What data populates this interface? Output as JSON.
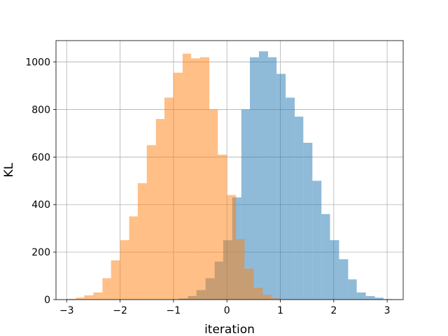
{
  "chart_data": {
    "type": "bar",
    "subtype": "overlapping-histogram",
    "title": "",
    "xlabel": "iteration",
    "ylabel": "KL",
    "xlim": [
      -3.2,
      3.3
    ],
    "ylim": [
      0,
      1090
    ],
    "x_ticks": [
      -3,
      -2,
      -1,
      0,
      1,
      2,
      3
    ],
    "x_tick_labels": [
      "−3",
      "−2",
      "−1",
      "0",
      "1",
      "2",
      "3"
    ],
    "y_ticks": [
      0,
      200,
      400,
      600,
      800,
      1000
    ],
    "y_tick_labels": [
      "0",
      "200",
      "400",
      "600",
      "800",
      "1000"
    ],
    "grid": true,
    "series": [
      {
        "color": "#1f77b4",
        "opacity": 0.5,
        "bin_edges": [
          -0.9,
          -0.73,
          -0.57,
          -0.4,
          -0.23,
          -0.07,
          0.1,
          0.27,
          0.43,
          0.6,
          0.77,
          0.93,
          1.1,
          1.27,
          1.43,
          1.6,
          1.77,
          1.93,
          2.1,
          2.27,
          2.43,
          2.6,
          2.77,
          2.93,
          3.1
        ],
        "counts": [
          5,
          15,
          40,
          90,
          160,
          250,
          430,
          800,
          1020,
          1045,
          1020,
          950,
          850,
          770,
          660,
          500,
          360,
          250,
          170,
          85,
          30,
          15,
          8,
          2
        ]
      },
      {
        "color": "#ff7f0e",
        "opacity": 0.5,
        "bin_edges": [
          -3.0,
          -2.83,
          -2.67,
          -2.5,
          -2.33,
          -2.17,
          -2.0,
          -1.83,
          -1.67,
          -1.5,
          -1.33,
          -1.17,
          -1.0,
          -0.83,
          -0.67,
          -0.5,
          -0.33,
          -0.17,
          0.0,
          0.17,
          0.33,
          0.5,
          0.67,
          0.83,
          1.0
        ],
        "counts": [
          3,
          8,
          18,
          30,
          90,
          165,
          250,
          350,
          490,
          650,
          760,
          850,
          955,
          1035,
          1015,
          1020,
          800,
          610,
          440,
          255,
          130,
          50,
          20,
          6
        ]
      }
    ]
  }
}
